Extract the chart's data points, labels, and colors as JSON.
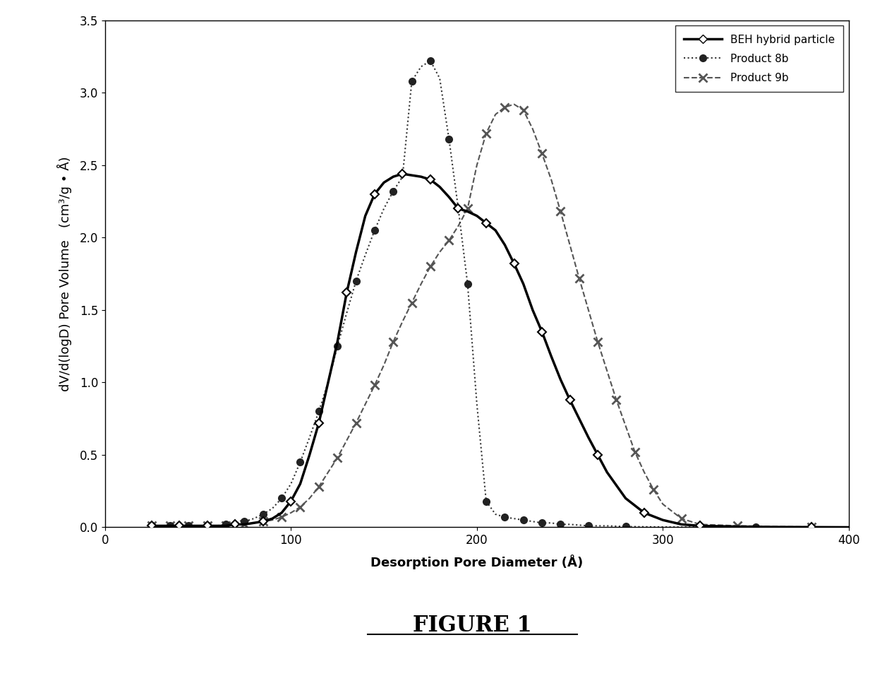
{
  "title": "FIGURE 1",
  "xlabel": "Desorption Pore Diameter (Å)",
  "ylabel": "dV/d(logD) Pore Volume   (cm³/g • Å)",
  "xlim": [
    0,
    400
  ],
  "ylim": [
    0,
    3.5
  ],
  "xticks": [
    0,
    100,
    200,
    300,
    400
  ],
  "yticks": [
    0.0,
    0.5,
    1.0,
    1.5,
    2.0,
    2.5,
    3.0,
    3.5
  ],
  "series": {
    "BEH": {
      "label": "BEH hybrid particle",
      "x": [
        25,
        30,
        35,
        40,
        45,
        50,
        55,
        60,
        65,
        70,
        75,
        80,
        85,
        90,
        95,
        100,
        105,
        110,
        115,
        120,
        125,
        130,
        135,
        140,
        145,
        150,
        155,
        160,
        165,
        170,
        175,
        180,
        185,
        190,
        195,
        200,
        205,
        210,
        215,
        220,
        225,
        230,
        235,
        240,
        245,
        250,
        255,
        260,
        265,
        270,
        280,
        290,
        300,
        310,
        320,
        340,
        360,
        380,
        400
      ],
      "y": [
        0.01,
        0.01,
        0.01,
        0.01,
        0.01,
        0.01,
        0.01,
        0.01,
        0.01,
        0.02,
        0.02,
        0.03,
        0.04,
        0.06,
        0.1,
        0.18,
        0.3,
        0.5,
        0.72,
        1.0,
        1.28,
        1.62,
        1.9,
        2.15,
        2.3,
        2.38,
        2.42,
        2.44,
        2.43,
        2.42,
        2.4,
        2.35,
        2.28,
        2.2,
        2.18,
        2.15,
        2.1,
        2.05,
        1.95,
        1.82,
        1.68,
        1.5,
        1.35,
        1.18,
        1.02,
        0.88,
        0.75,
        0.62,
        0.5,
        0.38,
        0.2,
        0.1,
        0.05,
        0.02,
        0.01,
        0.005,
        0.002,
        0.001,
        0.0
      ],
      "color": "#000000",
      "linestyle": "-",
      "linewidth": 2.5,
      "marker": "D",
      "markersize": 6,
      "markerfacecolor": "white",
      "markeredgecolor": "#000000",
      "markeredgewidth": 1.5,
      "markevery": 3
    },
    "P8b": {
      "label": "Product 8b",
      "x": [
        25,
        30,
        35,
        40,
        45,
        50,
        55,
        60,
        65,
        70,
        75,
        80,
        85,
        90,
        95,
        100,
        105,
        110,
        115,
        120,
        125,
        130,
        135,
        140,
        145,
        150,
        155,
        160,
        165,
        170,
        175,
        180,
        185,
        190,
        195,
        200,
        205,
        210,
        215,
        220,
        225,
        230,
        235,
        240,
        245,
        250,
        260,
        270,
        280,
        300,
        350
      ],
      "y": [
        0.01,
        0.01,
        0.01,
        0.01,
        0.01,
        0.01,
        0.01,
        0.01,
        0.02,
        0.03,
        0.04,
        0.06,
        0.09,
        0.13,
        0.2,
        0.3,
        0.45,
        0.62,
        0.8,
        1.0,
        1.25,
        1.48,
        1.7,
        1.88,
        2.05,
        2.2,
        2.32,
        2.42,
        3.08,
        3.18,
        3.22,
        3.1,
        2.68,
        2.2,
        1.68,
        0.85,
        0.18,
        0.09,
        0.07,
        0.06,
        0.05,
        0.04,
        0.03,
        0.03,
        0.02,
        0.02,
        0.01,
        0.01,
        0.005,
        0.002,
        0.0
      ],
      "color": "#333333",
      "linestyle": ":",
      "linewidth": 1.5,
      "marker": "o",
      "markersize": 7,
      "markerfacecolor": "#222222",
      "markeredgecolor": "#222222",
      "markevery": 2
    },
    "P9b": {
      "label": "Product 9b",
      "x": [
        25,
        30,
        35,
        40,
        45,
        50,
        55,
        60,
        65,
        70,
        75,
        80,
        85,
        90,
        95,
        100,
        105,
        110,
        115,
        120,
        125,
        130,
        135,
        140,
        145,
        150,
        155,
        160,
        165,
        170,
        175,
        180,
        185,
        190,
        195,
        200,
        205,
        210,
        215,
        220,
        225,
        230,
        235,
        240,
        245,
        250,
        255,
        260,
        265,
        270,
        275,
        280,
        285,
        290,
        295,
        300,
        310,
        320,
        340,
        360,
        380,
        400
      ],
      "y": [
        0.01,
        0.01,
        0.01,
        0.01,
        0.01,
        0.01,
        0.01,
        0.01,
        0.01,
        0.02,
        0.02,
        0.03,
        0.04,
        0.05,
        0.07,
        0.1,
        0.14,
        0.2,
        0.28,
        0.38,
        0.48,
        0.6,
        0.72,
        0.85,
        0.98,
        1.12,
        1.28,
        1.42,
        1.55,
        1.68,
        1.8,
        1.9,
        1.98,
        2.08,
        2.2,
        2.5,
        2.72,
        2.85,
        2.9,
        2.92,
        2.88,
        2.75,
        2.58,
        2.4,
        2.18,
        1.95,
        1.72,
        1.5,
        1.28,
        1.08,
        0.88,
        0.7,
        0.52,
        0.38,
        0.26,
        0.16,
        0.06,
        0.02,
        0.01,
        0.005,
        0.002,
        0.0
      ],
      "color": "#555555",
      "linestyle": "--",
      "linewidth": 1.5,
      "marker": "x",
      "markersize": 8,
      "markerfacecolor": "#555555",
      "markeredgecolor": "#555555",
      "markeredgewidth": 2.0,
      "markevery": 2
    }
  },
  "background_color": "#ffffff",
  "figure_title_fontsize": 22,
  "axis_label_fontsize": 13,
  "tick_label_fontsize": 12
}
